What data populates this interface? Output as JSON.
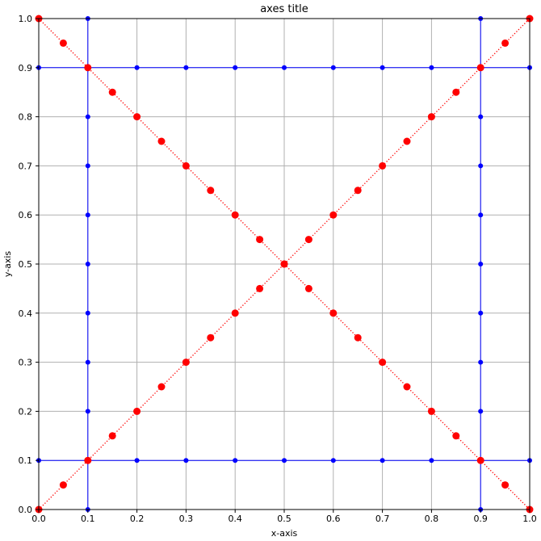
{
  "chart_data": {
    "type": "line",
    "title": "axes title",
    "xlabel": "x-axis",
    "ylabel": "y-axis",
    "xlim": [
      0.0,
      1.0
    ],
    "ylim": [
      0.0,
      1.0
    ],
    "grid": true,
    "x_ticks": [
      "0.0",
      "0.1",
      "0.2",
      "0.3",
      "0.4",
      "0.5",
      "0.6",
      "0.7",
      "0.8",
      "0.9",
      "1.0"
    ],
    "y_ticks": [
      "0.0",
      "0.1",
      "0.2",
      "0.3",
      "0.4",
      "0.5",
      "0.6",
      "0.7",
      "0.8",
      "0.9",
      "1.0"
    ],
    "series": [
      {
        "color": "#0000ff",
        "style": "solid",
        "marker_size": 3,
        "x": [
          0.0,
          0.1,
          0.2,
          0.3,
          0.4,
          0.5,
          0.6,
          0.7,
          0.8,
          0.9,
          1.0
        ],
        "y": [
          0.1,
          0.1,
          0.1,
          0.1,
          0.1,
          0.1,
          0.1,
          0.1,
          0.1,
          0.1,
          0.1
        ]
      },
      {
        "color": "#0000ff",
        "style": "solid",
        "marker_size": 3,
        "x": [
          0.0,
          0.1,
          0.2,
          0.3,
          0.4,
          0.5,
          0.6,
          0.7,
          0.8,
          0.9,
          1.0
        ],
        "y": [
          0.9,
          0.9,
          0.9,
          0.9,
          0.9,
          0.9,
          0.9,
          0.9,
          0.9,
          0.9,
          0.9
        ]
      },
      {
        "color": "#0000ff",
        "style": "solid",
        "marker_size": 3,
        "x": [
          0.1,
          0.1,
          0.1,
          0.1,
          0.1,
          0.1,
          0.1,
          0.1,
          0.1,
          0.1,
          0.1
        ],
        "y": [
          0.0,
          0.1,
          0.2,
          0.3,
          0.4,
          0.5,
          0.6,
          0.7,
          0.8,
          0.9,
          1.0
        ]
      },
      {
        "color": "#0000ff",
        "style": "solid",
        "marker_size": 3,
        "x": [
          0.9,
          0.9,
          0.9,
          0.9,
          0.9,
          0.9,
          0.9,
          0.9,
          0.9,
          0.9,
          0.9
        ],
        "y": [
          0.0,
          0.1,
          0.2,
          0.3,
          0.4,
          0.5,
          0.6,
          0.7,
          0.8,
          0.9,
          1.0
        ]
      },
      {
        "color": "#ff0000",
        "style": "dotted",
        "marker_size": 4.5,
        "x": [
          0.0,
          0.05,
          0.1,
          0.15,
          0.2,
          0.25,
          0.3,
          0.35,
          0.4,
          0.45,
          0.5,
          0.55,
          0.6,
          0.65,
          0.7,
          0.75,
          0.8,
          0.85,
          0.9,
          0.95,
          1.0
        ],
        "y": [
          0.0,
          0.05,
          0.1,
          0.15,
          0.2,
          0.25,
          0.3,
          0.35,
          0.4,
          0.45,
          0.5,
          0.55,
          0.6,
          0.65,
          0.7,
          0.75,
          0.8,
          0.85,
          0.9,
          0.95,
          1.0
        ]
      },
      {
        "color": "#ff0000",
        "style": "dotted",
        "marker_size": 4.5,
        "x": [
          0.0,
          0.05,
          0.1,
          0.15,
          0.2,
          0.25,
          0.3,
          0.35,
          0.4,
          0.45,
          0.5,
          0.55,
          0.6,
          0.65,
          0.7,
          0.75,
          0.8,
          0.85,
          0.9,
          0.95,
          1.0
        ],
        "y": [
          1.0,
          0.95,
          0.9,
          0.85,
          0.8,
          0.75,
          0.7,
          0.65,
          0.6,
          0.55,
          0.5,
          0.45,
          0.4,
          0.35,
          0.3,
          0.25,
          0.2,
          0.15,
          0.1,
          0.05,
          0.0
        ]
      }
    ]
  }
}
